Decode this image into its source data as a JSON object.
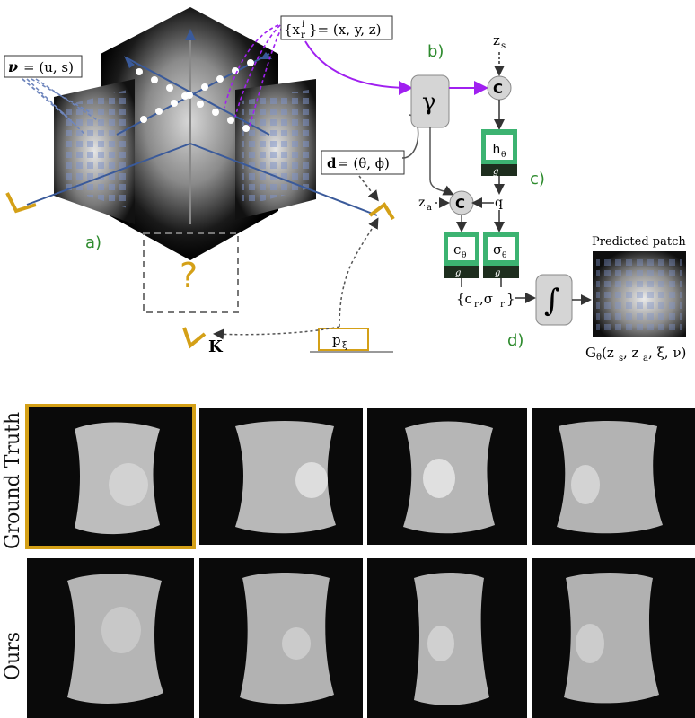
{
  "labels": {
    "a": "a)",
    "b": "b)",
    "c": "c)",
    "d": "d)",
    "nu_eq": "= (u, s)",
    "x_lhs": "{x",
    "x_rhs": "}= (x, y, z)",
    "x_sub": "r",
    "x_sup": "i",
    "d_eq": "= (θ, ϕ)",
    "question": "?",
    "K": "K",
    "p_xi": "p",
    "p_sub": "ξ",
    "gamma": "γ",
    "C": "C",
    "z_s": "z",
    "z_s_sub": "s",
    "z_a": "z",
    "z_a_sub": "a",
    "h_theta": "h",
    "c_theta": "c",
    "sigma_theta": "σ",
    "theta_sub": "θ",
    "g_theta": "g",
    "q": "q",
    "out_c": "{c",
    "out_sigma": ",σ",
    "out_close": "}",
    "r_sub": "r",
    "integral": "∫",
    "predicted_patch": "Predicted patch",
    "G_out": "G",
    "G_args": "(z",
    "G_args2": ", z",
    "G_args3": ", ξ, ν)"
  },
  "rows": [
    {
      "label": "Ground Truth",
      "highlight_first": true
    },
    {
      "label": "Ours",
      "highlight_first": false
    }
  ],
  "colors": {
    "accent_gold": "#d4a017",
    "green": "#2e8b2e",
    "purple": "#a020f0",
    "axis_blue": "#3a5a9a",
    "block_green": "#3cb371",
    "block_dark": "#1e2e1e"
  }
}
